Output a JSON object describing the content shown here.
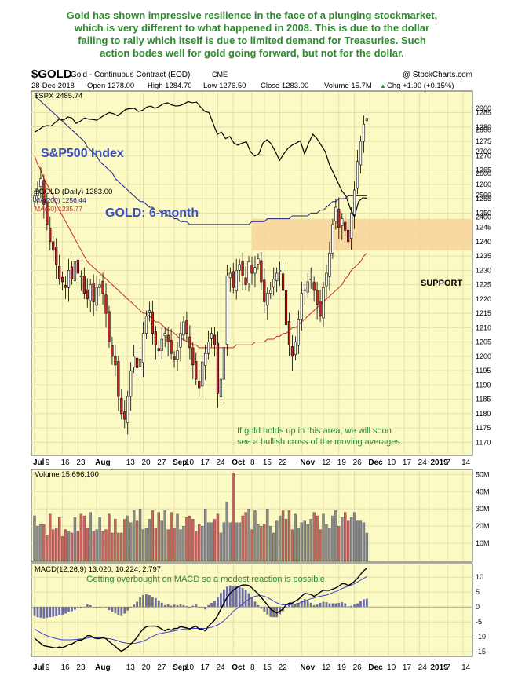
{
  "headline": [
    "Gold has shown impressive resilience in the face of a plunging stockmarket,",
    "which is very different to what happened in 2008. This is due to the dollar",
    "failing to rally which itself is due to limited demand for Treasuries. Such",
    "action bodes well for gold going forward, but not for the dollar."
  ],
  "header": {
    "symbol": "$GOLD",
    "name": "Gold - Continuous Contract (EOD)",
    "exchange": "CME",
    "watermark": "@ StockCharts.com",
    "date": "28-Dec-2018",
    "open": "Open 1278.00",
    "high": "High 1284.70",
    "low": "Low 1276.50",
    "close": "Close 1283.00",
    "volume": "Volume 15.7M",
    "chg": "Chg +1.90 (+0.15%)",
    "chg_marker": "▲"
  },
  "colors": {
    "panel_bg": "#fbf9c4",
    "up": "#ffffff",
    "down": "#cc2222",
    "spx_line": "#000000",
    "ma200": "#1a237e",
    "ma50": "#c62828",
    "support_band": "#f7d49a",
    "annotation_blue": "#3a4fc0",
    "annotation_green": "#2e8b2e",
    "volume_up": "#8a8a8a",
    "volume_down": "#c9645c",
    "macd_line": "#000000",
    "signal_line": "#3a40d8",
    "histogram": "#6e6e9e"
  },
  "chart_data": [
    {
      "type": "line",
      "panel": "price",
      "legend": "$SPX 2485.74",
      "annotation": "S&P500 Index",
      "series": [
        {
          "name": "$SPX",
          "values": [
            2790,
            2800,
            2815,
            2820,
            2818,
            2835,
            2850,
            2845,
            2860,
            2855,
            2830,
            2840,
            2855,
            2850,
            2848,
            2845,
            2858,
            2870,
            2880,
            2875,
            2865,
            2880,
            2895,
            2898,
            2900,
            2885,
            2890,
            2905,
            2910,
            2900,
            2908,
            2920,
            2925,
            2915,
            2910,
            2912,
            2920,
            2930,
            2925,
            2928,
            2905,
            2885,
            2880,
            2830,
            2780,
            2790,
            2760,
            2770,
            2740,
            2730,
            2740,
            2745,
            2700,
            2680,
            2690,
            2740,
            2755,
            2735,
            2700,
            2660,
            2690,
            2715,
            2730,
            2740,
            2750,
            2690,
            2740,
            2780,
            2760,
            2730,
            2700,
            2640,
            2600,
            2560,
            2520,
            2495,
            2440,
            2400,
            2470,
            2488,
            2486
          ]
        }
      ],
      "ylim": [
        2300,
        2950
      ],
      "yticks": [
        2400,
        2500,
        2600,
        2700,
        2800,
        2900
      ]
    },
    {
      "type": "candlestick",
      "panel": "price",
      "legend": {
        "gold": "$GOLD (Daily) 1283.00",
        "ma200": "MA(200) 1256.44",
        "ma50": "MA(50) 1235.77"
      },
      "annotations": {
        "title": "GOLD: 6-month",
        "support": "SUPPORT",
        "cross_note": [
          "If gold holds up in this area, we will soon",
          "see a bullish cross of the moving averages."
        ]
      },
      "support_band": [
        1237,
        1248
      ],
      "close": [
        1256,
        1258,
        1262,
        1253,
        1246,
        1240,
        1237,
        1232,
        1227,
        1226,
        1224,
        1230,
        1227,
        1233,
        1229,
        1228,
        1222,
        1220,
        1225,
        1219,
        1224,
        1225,
        1222,
        1215,
        1205,
        1200,
        1197,
        1186,
        1180,
        1178,
        1186,
        1195,
        1200,
        1196,
        1199,
        1208,
        1214,
        1216,
        1208,
        1204,
        1202,
        1206,
        1208,
        1205,
        1201,
        1199,
        1202,
        1208,
        1212,
        1208,
        1203,
        1197,
        1192,
        1189,
        1198,
        1201,
        1205,
        1208,
        1204,
        1187,
        1192,
        1203,
        1228,
        1229,
        1224,
        1230,
        1232,
        1228,
        1225,
        1233,
        1229,
        1231,
        1234,
        1226,
        1219,
        1222,
        1223,
        1227,
        1229,
        1230,
        1223,
        1211,
        1204,
        1200,
        1205,
        1213,
        1222,
        1223,
        1226,
        1227,
        1223,
        1218,
        1214,
        1224,
        1229,
        1236,
        1246,
        1252,
        1245,
        1248,
        1244,
        1240,
        1250,
        1258,
        1268,
        1275,
        1281,
        1283
      ],
      "ma200": [
        1291,
        1290,
        1289,
        1288,
        1287,
        1286,
        1285,
        1284,
        1283,
        1282,
        1281,
        1280,
        1279,
        1278,
        1277,
        1276,
        1275,
        1273,
        1272,
        1271,
        1270,
        1268,
        1267,
        1266,
        1265,
        1264,
        1262,
        1261,
        1260,
        1259,
        1258,
        1257,
        1256,
        1255,
        1254,
        1254,
        1253,
        1252,
        1252,
        1251,
        1251,
        1250,
        1250,
        1249,
        1249,
        1248,
        1248,
        1247,
        1247,
        1247,
        1246,
        1246,
        1246,
        1246,
        1246,
        1246,
        1246,
        1246,
        1246,
        1246,
        1246,
        1246,
        1246,
        1246,
        1246,
        1246,
        1246,
        1246,
        1246,
        1246,
        1247,
        1247,
        1247,
        1247,
        1247,
        1248,
        1248,
        1248,
        1248,
        1248,
        1248,
        1248,
        1248,
        1249,
        1249,
        1249,
        1249,
        1249,
        1249,
        1250,
        1250,
        1250,
        1251,
        1251,
        1252,
        1253,
        1254,
        1254,
        1255,
        1255,
        1255,
        1256,
        1256,
        1256,
        1256,
        1256,
        1256,
        1256
      ],
      "ma50": [
        1270,
        1267,
        1265,
        1262,
        1260,
        1258,
        1256,
        1253,
        1251,
        1249,
        1247,
        1245,
        1243,
        1241,
        1239,
        1237,
        1235,
        1233,
        1232,
        1231,
        1230,
        1229,
        1228,
        1227,
        1226,
        1225,
        1224,
        1223,
        1222,
        1221,
        1220,
        1219,
        1218,
        1217,
        1216,
        1215,
        1215,
        1214,
        1213,
        1212,
        1212,
        1211,
        1210,
        1209,
        1209,
        1208,
        1207,
        1206,
        1206,
        1205,
        1205,
        1204,
        1204,
        1203,
        1203,
        1203,
        1203,
        1203,
        1203,
        1203,
        1203,
        1203,
        1203,
        1203,
        1203,
        1204,
        1204,
        1204,
        1204,
        1204,
        1204,
        1205,
        1205,
        1205,
        1205,
        1206,
        1206,
        1206,
        1207,
        1207,
        1208,
        1208,
        1209,
        1210,
        1210,
        1211,
        1212,
        1213,
        1214,
        1215,
        1216,
        1217,
        1218,
        1219,
        1220,
        1221,
        1222,
        1223,
        1224,
        1225,
        1227,
        1228,
        1230,
        1231,
        1232,
        1233,
        1235,
        1236
      ],
      "ylim": [
        1166,
        1292
      ],
      "yticks": [
        1170,
        1175,
        1180,
        1185,
        1190,
        1195,
        1200,
        1205,
        1210,
        1215,
        1220,
        1225,
        1230,
        1235,
        1240,
        1245,
        1250,
        1255,
        1260,
        1265,
        1270,
        1275,
        1280,
        1285
      ]
    },
    {
      "type": "bar",
      "panel": "volume",
      "legend": "Volume 15,696,100",
      "ylabel_ticks": [
        "10M",
        "20M",
        "30M",
        "40M",
        "50M"
      ],
      "yticks": [
        10,
        20,
        30,
        40,
        50
      ],
      "ylim": [
        0,
        52
      ],
      "values_millions": [
        26,
        20,
        21,
        21,
        15,
        27,
        18,
        19,
        25,
        14,
        18,
        17,
        16,
        25,
        17,
        27,
        26,
        19,
        28,
        17,
        18,
        25,
        17,
        18,
        27,
        16,
        24,
        16,
        16,
        24,
        26,
        22,
        29,
        23,
        30,
        18,
        19,
        24,
        29,
        19,
        28,
        23,
        29,
        18,
        28,
        19,
        27,
        18,
        20,
        25,
        26,
        24,
        17,
        21,
        20,
        30,
        22,
        22,
        24,
        27,
        16,
        22,
        34,
        22,
        51,
        22,
        22,
        26,
        28,
        30,
        18,
        29,
        21,
        20,
        21,
        30,
        20,
        16,
        23,
        26,
        29,
        24,
        29,
        18,
        27,
        19,
        22,
        23,
        21,
        24,
        28,
        26,
        18,
        27,
        21,
        19,
        26,
        29,
        20,
        25,
        28,
        23,
        25,
        28,
        23,
        23,
        22,
        16
      ]
    },
    {
      "type": "line",
      "panel": "macd",
      "legend": "MACD(12,26,9) 13.020, 10.224, 2.797",
      "annotation": "Getting overbought on MACD so a modest reaction is possible.",
      "ylim": [
        -16,
        14
      ],
      "yticks": [
        -15,
        -10,
        -5,
        0,
        5,
        10
      ],
      "series": [
        {
          "name": "MACD",
          "values": [
            -10.4,
            -11.4,
            -12.2,
            -13.0,
            -13.2,
            -13.4,
            -13.6,
            -13.7,
            -13.4,
            -13.6,
            -13.2,
            -12.6,
            -12.4,
            -11.8,
            -11.1,
            -11.1,
            -10.6,
            -9.6,
            -9.6,
            -10.3,
            -10.6,
            -10.6,
            -10.3,
            -10.6,
            -11.6,
            -12.4,
            -13.2,
            -14.2,
            -14.8,
            -14.2,
            -13.4,
            -12.4,
            -11.4,
            -10.2,
            -8.6,
            -7.4,
            -6.6,
            -6.4,
            -6.4,
            -6.4,
            -6.8,
            -7.4,
            -8.0,
            -7.4,
            -7.8,
            -7.2,
            -7.2,
            -6.6,
            -6.8,
            -7.0,
            -7.4,
            -6.8,
            -6.4,
            -7.4,
            -7.4,
            -8.0,
            -6.4,
            -5.4,
            -4.4,
            -2.8,
            -0.7,
            1.3,
            3.2,
            4.6,
            5.6,
            6.4,
            7.0,
            7.4,
            7.4,
            7.2,
            6.4,
            5.4,
            4.4,
            3.2,
            2.0,
            0.7,
            -0.7,
            -1.4,
            -2.0,
            -1.4,
            -0.7,
            0.7,
            1.3,
            1.3,
            2.0,
            2.6,
            3.6,
            4.6,
            4.4,
            4.2,
            3.6,
            4.2,
            5.0,
            5.6,
            5.6,
            5.6,
            6.0,
            6.4,
            7.0,
            7.8,
            7.8,
            7.2,
            7.8,
            8.6,
            9.6,
            11.0,
            12.2,
            13.0
          ]
        },
        {
          "name": "Signal",
          "values": [
            -7.4,
            -8.0,
            -8.6,
            -9.2,
            -9.6,
            -10.0,
            -10.3,
            -10.6,
            -10.8,
            -11.0,
            -11.0,
            -11.0,
            -11.0,
            -10.9,
            -10.8,
            -10.7,
            -10.6,
            -10.4,
            -10.2,
            -10.2,
            -10.3,
            -10.4,
            -10.4,
            -10.5,
            -10.6,
            -10.8,
            -11.1,
            -11.4,
            -11.8,
            -12.0,
            -12.2,
            -12.2,
            -12.2,
            -12.0,
            -11.8,
            -11.4,
            -11.0,
            -10.4,
            -9.8,
            -9.4,
            -9.0,
            -8.8,
            -8.6,
            -8.4,
            -8.2,
            -8.0,
            -7.8,
            -7.6,
            -7.4,
            -7.3,
            -7.2,
            -7.2,
            -7.2,
            -7.2,
            -7.2,
            -7.2,
            -7.0,
            -6.8,
            -6.4,
            -6.0,
            -5.4,
            -4.6,
            -3.6,
            -2.6,
            -1.4,
            -0.7,
            0.0,
            1.0,
            1.8,
            2.6,
            3.2,
            3.6,
            3.8,
            3.8,
            3.6,
            3.2,
            2.6,
            2.0,
            1.4,
            1.0,
            0.7,
            0.7,
            0.7,
            0.8,
            1.0,
            1.2,
            1.6,
            2.0,
            2.4,
            2.8,
            3.0,
            3.4,
            3.6,
            3.8,
            4.0,
            4.4,
            4.8,
            5.2,
            5.6,
            6.2,
            6.6,
            7.0,
            7.4,
            7.8,
            8.4,
            9.0,
            9.6,
            10.2
          ]
        },
        {
          "name": "Histogram",
          "values": [
            -3.0,
            -3.4,
            -3.6,
            -3.8,
            -3.6,
            -3.4,
            -3.3,
            -3.1,
            -2.6,
            -2.6,
            -2.2,
            -1.6,
            -1.4,
            -0.9,
            -0.3,
            -0.4,
            0.0,
            0.8,
            0.6,
            -0.1,
            -0.3,
            -0.2,
            0.1,
            -0.1,
            -1.0,
            -1.6,
            -2.1,
            -2.8,
            -3.0,
            -2.2,
            -1.2,
            -0.2,
            0.8,
            1.8,
            3.2,
            4.0,
            4.4,
            4.0,
            3.4,
            3.0,
            2.2,
            1.4,
            0.6,
            1.0,
            0.4,
            0.8,
            0.6,
            1.0,
            0.6,
            0.3,
            -0.2,
            0.4,
            0.8,
            -0.2,
            -0.2,
            -0.8,
            0.6,
            1.4,
            2.0,
            3.2,
            4.7,
            5.9,
            6.8,
            7.2,
            7.0,
            7.1,
            7.0,
            6.4,
            5.6,
            4.6,
            3.2,
            1.8,
            0.6,
            -0.6,
            -1.6,
            -2.5,
            -3.3,
            -3.4,
            -3.4,
            -2.4,
            -1.4,
            0.0,
            0.6,
            0.5,
            1.0,
            1.4,
            2.0,
            2.6,
            2.0,
            1.4,
            0.6,
            0.8,
            1.4,
            1.8,
            1.6,
            1.2,
            1.2,
            1.2,
            1.4,
            1.6,
            1.2,
            0.2,
            0.4,
            0.8,
            1.2,
            2.0,
            2.6,
            2.8
          ]
        }
      ]
    }
  ],
  "x_axis": {
    "labels": [
      {
        "text": "Jul",
        "bold": true,
        "i": 0
      },
      {
        "text": "9",
        "i": 4
      },
      {
        "text": "16",
        "i": 9
      },
      {
        "text": "23",
        "i": 14
      },
      {
        "text": "Aug",
        "bold": true,
        "i": 20
      },
      {
        "text": "13",
        "i": 30
      },
      {
        "text": "20",
        "i": 35
      },
      {
        "text": "27",
        "i": 40
      },
      {
        "text": "Sep",
        "bold": true,
        "i": 45
      },
      {
        "text": "10",
        "i": 49
      },
      {
        "text": "17",
        "i": 54
      },
      {
        "text": "24",
        "i": 59
      },
      {
        "text": "Oct",
        "bold": true,
        "i": 64
      },
      {
        "text": "8",
        "i": 70
      },
      {
        "text": "15",
        "i": 74
      },
      {
        "text": "22",
        "i": 79
      },
      {
        "text": "Nov",
        "bold": true,
        "i": 86
      },
      {
        "text": "12",
        "i": 93
      },
      {
        "text": "19",
        "i": 98
      },
      {
        "text": "26",
        "i": 103
      },
      {
        "text": "Dec",
        "bold": true,
        "i": 108
      },
      {
        "text": "10",
        "i": 114
      },
      {
        "text": "17",
        "i": 119
      },
      {
        "text": "24",
        "i": 124
      },
      {
        "text": "2019",
        "bold": true,
        "i": 128
      },
      {
        "text": "7",
        "i": 133
      },
      {
        "text": "14",
        "i": 138
      }
    ]
  }
}
